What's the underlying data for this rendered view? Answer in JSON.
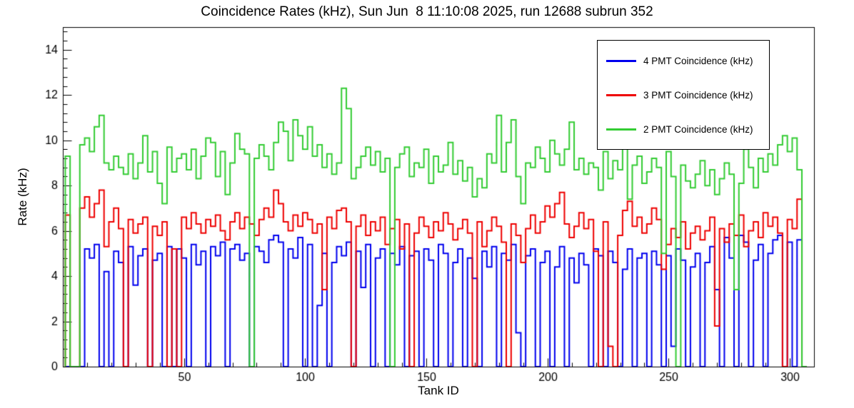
{
  "chart_data": {
    "type": "line",
    "subtype": "step-histogram",
    "title": "Coincidence Rates (kHz), Sun Jun  8 11:10:08 2025, run 12688 subrun 352",
    "xlabel": "Tank ID",
    "ylabel": "Rate (kHz)",
    "xlim": [
      0,
      310
    ],
    "ylim": [
      0,
      15
    ],
    "xticks": [
      50,
      100,
      150,
      200,
      250,
      300
    ],
    "yticks": [
      0,
      2,
      4,
      6,
      8,
      10,
      12,
      14
    ],
    "x_minor_step": 10,
    "y_minor_step": 0.4,
    "bin_start": 1,
    "bin_width": 2,
    "grid": false,
    "legend_position": "top-right",
    "axis_color": "#000000",
    "series": [
      {
        "name": "4 PMT Coincidence (kHz)",
        "color": "#0000ee",
        "values": [
          0,
          0,
          0,
          0,
          5.2,
          4.8,
          5.4,
          0,
          4.2,
          0,
          5.1,
          4.6,
          0,
          5.3,
          3.6,
          4.9,
          5.2,
          0,
          4.7,
          5.0,
          0,
          5.3,
          0,
          5.2,
          4.8,
          0,
          5.4,
          4.5,
          5.1,
          0,
          5.3,
          4.9,
          5.5,
          0,
          5.2,
          5.4,
          4.7,
          5.0,
          0,
          5.3,
          5.1,
          4.6,
          5.6,
          5.8,
          5.5,
          0,
          5.2,
          4.8,
          5.7,
          0,
          5.4,
          0,
          2.7,
          5.0,
          0,
          4.6,
          5.3,
          4.9,
          5.5,
          0,
          5.1,
          3.5,
          5.4,
          0,
          4.8,
          5.2,
          0,
          5.0,
          4.5,
          5.3,
          0,
          4.9,
          5.1,
          0,
          5.2,
          4.7,
          0,
          5.4,
          5.0,
          0,
          4.6,
          5.2,
          0,
          4.8,
          3.9,
          0,
          5.1,
          4.4,
          5.3,
          0,
          5.0,
          4.7,
          5.4,
          1.5,
          0,
          4.9,
          5.2,
          0,
          4.6,
          5.1,
          0,
          4.4,
          5.3,
          0,
          4.8,
          3.7,
          5.0,
          4.5,
          0,
          5.2,
          4.9,
          0,
          5.1,
          4.6,
          0,
          4.3,
          5.2,
          0,
          4.8,
          5.0,
          0,
          5.1,
          4.5,
          0,
          4.9,
          0.9,
          5.2,
          4.7,
          0,
          4.4,
          5.0,
          0,
          4.6,
          5.3,
          3.4,
          0,
          5.7,
          4.8,
          0,
          5.8,
          5.5,
          0,
          4.7,
          5.4,
          0,
          5.0,
          5.6,
          5.8,
          0,
          5.5,
          0,
          5.6,
          0
        ]
      },
      {
        "name": "3 PMT Coincidence (kHz)",
        "color": "#ee0000",
        "values": [
          6.7,
          0,
          0,
          7.0,
          7.5,
          6.6,
          7.2,
          7.8,
          5.3,
          6.4,
          7.0,
          6.1,
          0,
          6.5,
          5.9,
          6.3,
          6.6,
          0,
          6.2,
          5.8,
          6.4,
          0,
          5.2,
          0,
          6.6,
          6.1,
          6.8,
          6.3,
          5.9,
          6.5,
          6.2,
          6.7,
          6.0,
          5.6,
          6.4,
          6.8,
          6.1,
          6.6,
          6.3,
          5.8,
          6.5,
          7.0,
          6.6,
          7.8,
          7.2,
          6.4,
          6.0,
          6.7,
          6.2,
          6.8,
          6.5,
          5.9,
          6.3,
          3.4,
          6.6,
          6.1,
          6.9,
          7.0,
          6.4,
          0,
          6.2,
          6.7,
          5.8,
          6.4,
          6.0,
          6.6,
          5.4,
          6.1,
          6.5,
          5.2,
          6.3,
          0,
          5.9,
          6.6,
          6.2,
          5.7,
          6.4,
          6.0,
          6.8,
          6.3,
          5.6,
          6.1,
          6.5,
          5.9,
          0,
          6.4,
          5.3,
          6.0,
          6.6,
          6.2,
          5.5,
          0,
          6.3,
          5.8,
          4.6,
          6.1,
          6.7,
          5.9,
          6.4,
          7.1,
          6.6,
          7.2,
          7.7,
          6.3,
          5.7,
          6.2,
          6.8,
          6.1,
          6.5,
          5.1,
          0,
          6.4,
          0.9,
          0,
          5.8,
          6.9,
          7.3,
          6.2,
          6.6,
          5.9,
          6.3,
          7.0,
          6.5,
          4.3,
          5.4,
          6.1,
          5.7,
          6.4,
          5.2,
          5.9,
          6.2,
          5.6,
          6.0,
          6.6,
          1.8,
          6.1,
          5.5,
          6.3,
          5.8,
          6.7,
          5.3,
          6.0,
          6.4,
          5.7,
          6.8,
          6.2,
          6.6,
          5.9,
          0,
          6.5,
          6.1,
          7.4,
          0
        ]
      },
      {
        "name": "2 PMT Coincidence (kHz)",
        "color": "#33cc33",
        "values": [
          9.3,
          0,
          0,
          9.8,
          10.1,
          9.5,
          10.6,
          11.1,
          9.0,
          8.7,
          9.3,
          8.8,
          8.5,
          9.4,
          8.3,
          9.0,
          10.2,
          8.6,
          9.5,
          8.1,
          7.2,
          9.7,
          8.6,
          9.2,
          9.4,
          8.7,
          9.6,
          8.3,
          9.3,
          10.1,
          9.9,
          8.4,
          9.5,
          7.6,
          9.0,
          10.3,
          9.6,
          9.4,
          0,
          9.2,
          9.8,
          9.3,
          8.7,
          9.9,
          10.8,
          10.4,
          9.1,
          10.9,
          10.2,
          9.6,
          10.6,
          9.3,
          9.8,
          8.8,
          9.4,
          8.5,
          9.0,
          12.3,
          11.4,
          8.3,
          8.8,
          9.3,
          9.7,
          8.9,
          9.5,
          8.6,
          9.2,
          0,
          8.8,
          9.4,
          9.7,
          8.4,
          9.0,
          8.8,
          9.6,
          8.1,
          9.3,
          8.6,
          8.9,
          9.9,
          8.5,
          9.1,
          8.2,
          8.8,
          7.5,
          8.3,
          7.9,
          9.4,
          9.0,
          11.1,
          8.6,
          9.9,
          10.9,
          8.4,
          7.2,
          9.0,
          8.8,
          9.7,
          9.2,
          8.6,
          10.0,
          9.4,
          8.9,
          9.6,
          10.8,
          8.7,
          9.2,
          8.5,
          9.0,
          8.8,
          7.8,
          9.5,
          8.3,
          9.1,
          8.7,
          9.8,
          7.4,
          8.9,
          9.3,
          8.1,
          8.6,
          9.2,
          8.8,
          5.0,
          9.5,
          8.4,
          0,
          8.9,
          8.2,
          7.9,
          8.5,
          9.1,
          8.0,
          8.7,
          7.6,
          8.3,
          9.0,
          8.5,
          3.4,
          8.1,
          9.6,
          8.8,
          7.9,
          9.2,
          8.6,
          9.4,
          8.9,
          9.8,
          10.2,
          9.5,
          10.1,
          8.7,
          0
        ]
      }
    ]
  }
}
